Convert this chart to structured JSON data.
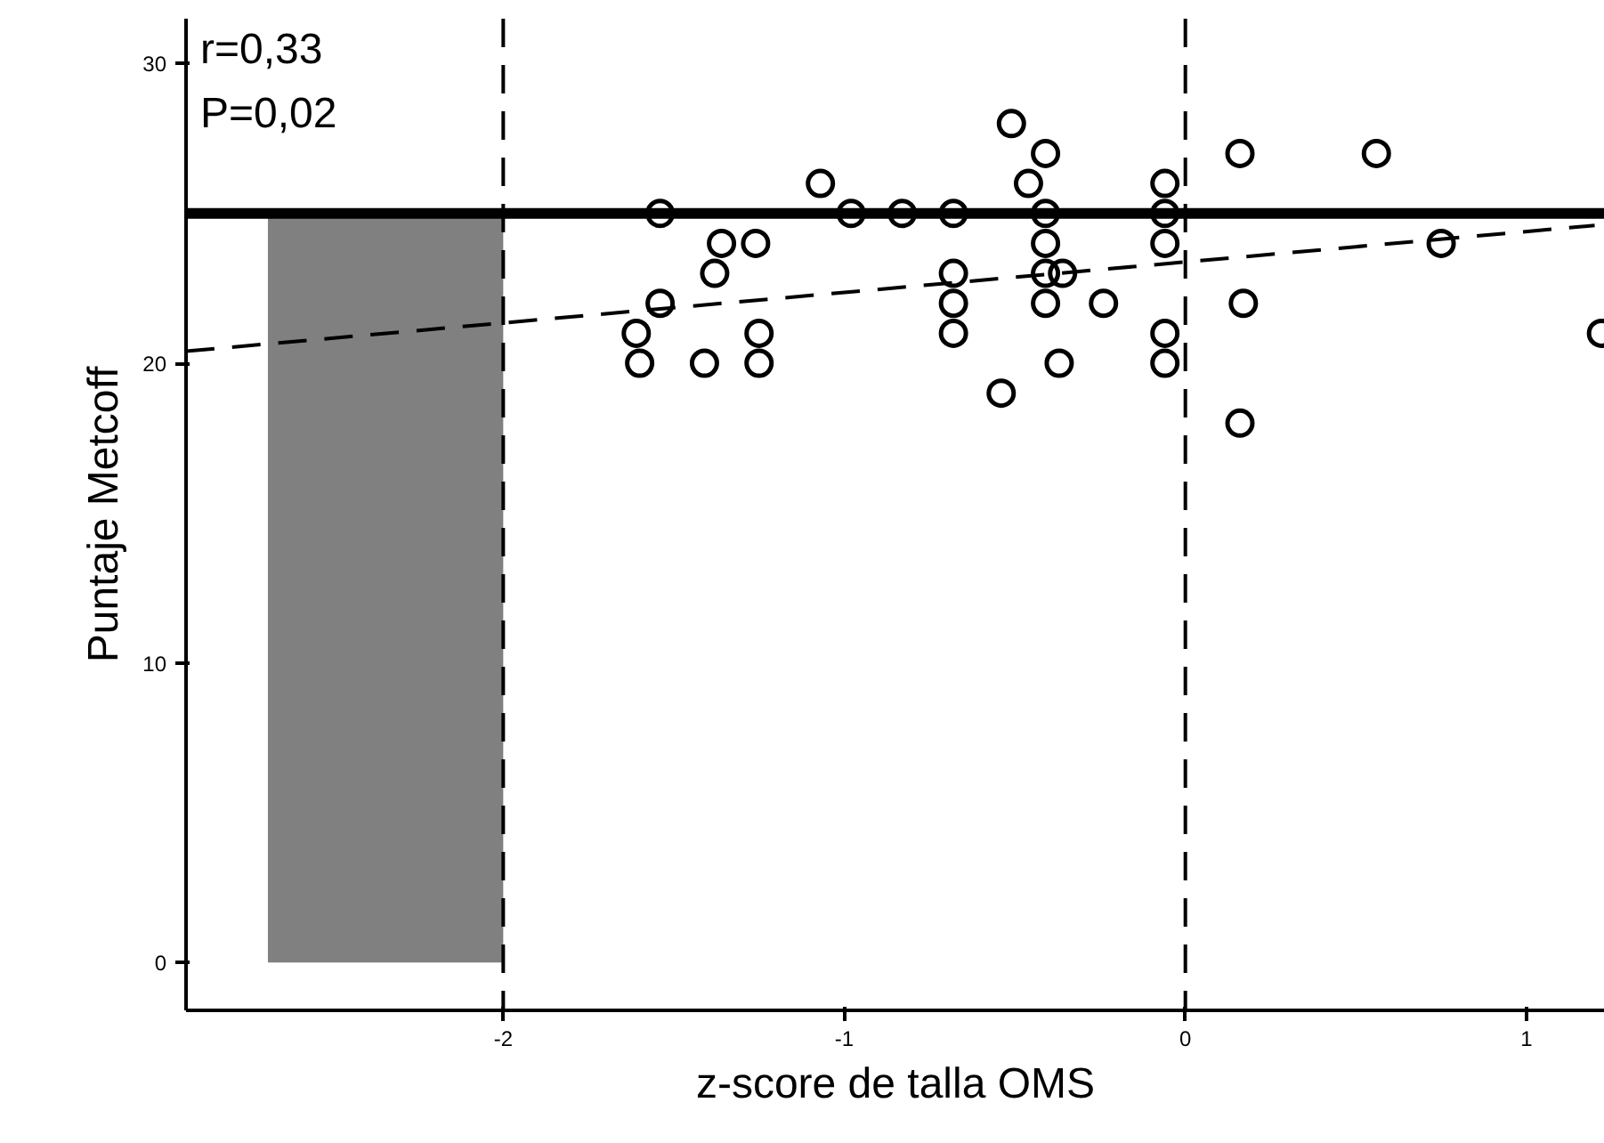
{
  "chart_data": {
    "type": "scatter",
    "xlabel": "z-score de talla OMS",
    "ylabel": "Puntaje Metcoff",
    "annotations": [
      "r=0,33",
      "P=0,02"
    ],
    "xlim": [
      -2.93,
      1.23
    ],
    "ylim": [
      -1.6,
      31.5
    ],
    "xticks": [
      -2,
      -1,
      0,
      1
    ],
    "yticks": [
      0,
      10,
      20,
      30
    ],
    "grid": false,
    "series": [
      {
        "marker": "circle",
        "color": "#000000",
        "x": [
          -1.54,
          -1.36,
          -1.26,
          -1.38,
          -1.54,
          -1.61,
          -1.25,
          -1.6,
          -1.41,
          -1.25,
          -1.07,
          -0.98,
          -0.83,
          -0.68,
          -0.68,
          -0.68,
          -0.68,
          -0.54,
          -0.51,
          -0.41,
          -0.46,
          -0.41,
          -0.41,
          -0.41,
          -0.36,
          -0.41,
          -0.37,
          -0.24,
          -0.06,
          -0.06,
          -0.06,
          0.16,
          0.56,
          0.75,
          0.17,
          -0.06,
          -0.06,
          0.16,
          1.22
        ],
        "values": [
          25,
          24,
          24,
          23,
          22,
          21,
          21,
          20,
          20,
          20,
          26,
          25,
          25,
          25,
          23,
          22,
          21,
          19,
          28,
          27,
          26,
          25,
          24,
          23,
          23,
          22,
          20,
          22,
          26,
          25,
          24,
          27,
          27,
          24,
          22,
          21,
          20,
          18,
          21
        ]
      },
      {
        "type": "line",
        "color": "#000000",
        "line_style": "dashed",
        "x": [
          -2.93,
          1.2
        ],
        "values": [
          20.4,
          24.6
        ]
      }
    ],
    "ref_lines": [
      {
        "axis": "y",
        "value": 25,
        "color": "#000000",
        "line_style": "solid"
      },
      {
        "axis": "x",
        "value": -2,
        "color": "#000000",
        "line_style": "dashed"
      },
      {
        "axis": "x",
        "value": 0,
        "color": "#000000",
        "line_style": "dashed"
      }
    ],
    "bands": [
      {
        "axis": "x",
        "from": -2.69,
        "to": -2,
        "color": "#808080"
      }
    ]
  }
}
